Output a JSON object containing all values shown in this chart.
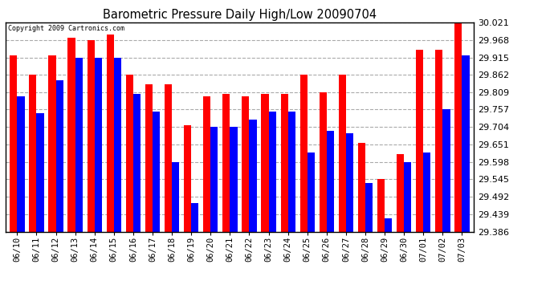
{
  "title": "Barometric Pressure Daily High/Low 20090704",
  "copyright": "Copyright 2009 Cartronics.com",
  "dates": [
    "06/10",
    "06/11",
    "06/12",
    "06/13",
    "06/14",
    "06/15",
    "06/16",
    "06/17",
    "06/18",
    "06/19",
    "06/20",
    "06/21",
    "06/22",
    "06/23",
    "06/24",
    "06/25",
    "06/26",
    "06/27",
    "06/28",
    "06/29",
    "06/30",
    "07/01",
    "07/02",
    "07/03"
  ],
  "highs": [
    29.921,
    29.862,
    29.921,
    29.974,
    29.968,
    29.985,
    29.862,
    29.833,
    29.833,
    29.71,
    29.798,
    29.804,
    29.798,
    29.804,
    29.804,
    29.862,
    29.809,
    29.862,
    29.657,
    29.545,
    29.621,
    29.939,
    29.939,
    30.021
  ],
  "lows": [
    29.798,
    29.745,
    29.845,
    29.915,
    29.915,
    29.915,
    29.804,
    29.751,
    29.598,
    29.474,
    29.704,
    29.704,
    29.727,
    29.751,
    29.751,
    29.627,
    29.692,
    29.686,
    29.533,
    29.427,
    29.598,
    29.627,
    29.757,
    29.921
  ],
  "high_color": "#ff0000",
  "low_color": "#0000ff",
  "bg_color": "#ffffff",
  "grid_color": "#aaaaaa",
  "ymin": 29.386,
  "ymax": 30.021,
  "yticks": [
    29.386,
    29.439,
    29.492,
    29.545,
    29.598,
    29.651,
    29.704,
    29.757,
    29.809,
    29.862,
    29.915,
    29.968,
    30.021
  ]
}
